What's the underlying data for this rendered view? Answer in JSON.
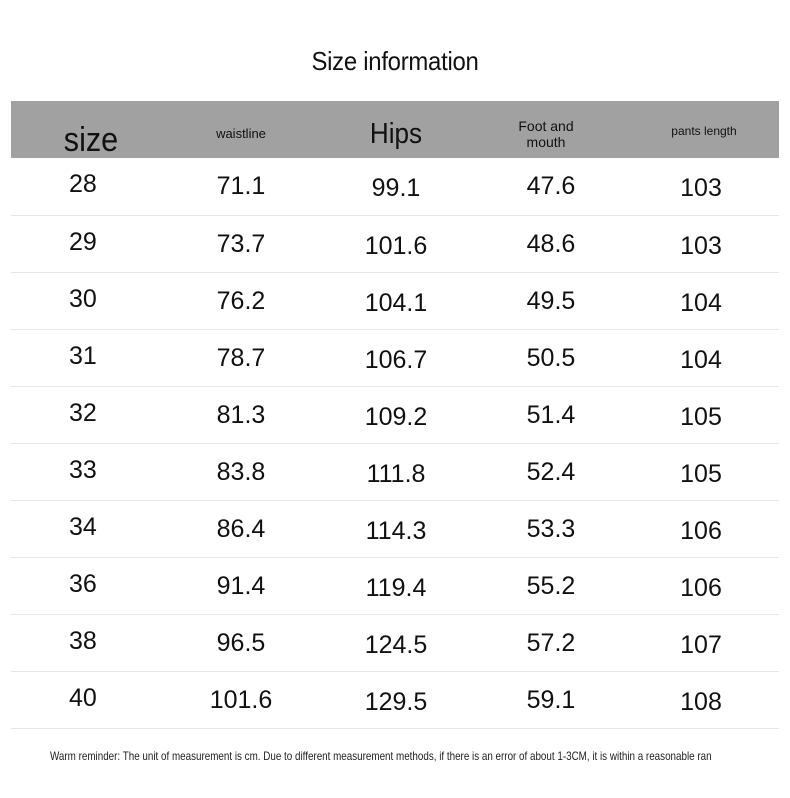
{
  "title": "Size information",
  "header": {
    "size": "size",
    "waistline": "waistline",
    "hips": "Hips",
    "foot_line1": "Foot and",
    "foot_line2": "mouth",
    "pants_length": "pants length"
  },
  "rows": [
    {
      "size": "28",
      "waistline": "71.1",
      "hips": "99.1",
      "foot": "47.6",
      "pants": "103"
    },
    {
      "size": "29",
      "waistline": "73.7",
      "hips": "101.6",
      "foot": "48.6",
      "pants": "103"
    },
    {
      "size": "30",
      "waistline": "76.2",
      "hips": "104.1",
      "foot": "49.5",
      "pants": "104"
    },
    {
      "size": "31",
      "waistline": "78.7",
      "hips": "106.7",
      "foot": "50.5",
      "pants": "104"
    },
    {
      "size": "32",
      "waistline": "81.3",
      "hips": "109.2",
      "foot": "51.4",
      "pants": "105"
    },
    {
      "size": "33",
      "waistline": "83.8",
      "hips": "111.8",
      "foot": "52.4",
      "pants": "105"
    },
    {
      "size": "34",
      "waistline": "86.4",
      "hips": "114.3",
      "foot": "53.3",
      "pants": "106"
    },
    {
      "size": "36",
      "waistline": "91.4",
      "hips": "119.4",
      "foot": "55.2",
      "pants": "106"
    },
    {
      "size": "38",
      "waistline": "96.5",
      "hips": "124.5",
      "foot": "57.2",
      "pants": "107"
    },
    {
      "size": "40",
      "waistline": "101.6",
      "hips": "129.5",
      "foot": "59.1",
      "pants": "108"
    }
  ],
  "footer": "Warm reminder: The unit of measurement is cm. Due to different measurement methods, if there is an error of about 1-3CM, it is within a reasonable ran"
}
